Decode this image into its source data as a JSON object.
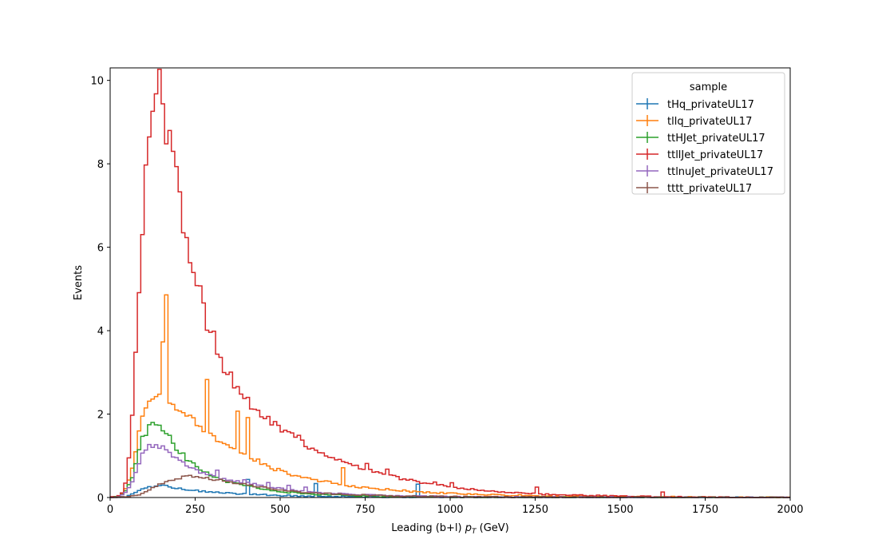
{
  "chart_data": {
    "type": "histogram-step",
    "xlabel_prefix": "Leading (b+l) ",
    "xlabel_math": "p",
    "xlabel_sub": "T",
    "xlabel_suffix": " (GeV)",
    "ylabel": "Events",
    "xlim": [
      0,
      2000
    ],
    "ylim": [
      0,
      10.3
    ],
    "xticks": [
      0,
      250,
      500,
      750,
      1000,
      1250,
      1500,
      1750,
      2000
    ],
    "yticks": [
      0,
      2,
      4,
      6,
      8,
      10
    ],
    "bin_width": 10,
    "legend": {
      "title": "sample",
      "placement": "upper right"
    },
    "series": [
      {
        "name": "tHq_privateUL17",
        "color": "#1f77b4",
        "knots": [
          [
            0,
            0
          ],
          [
            40,
            0.01
          ],
          [
            60,
            0.06
          ],
          [
            80,
            0.14
          ],
          [
            100,
            0.22
          ],
          [
            120,
            0.25
          ],
          [
            150,
            0.3
          ],
          [
            170,
            0.27
          ],
          [
            200,
            0.22
          ],
          [
            240,
            0.18
          ],
          [
            270,
            0.15
          ],
          [
            300,
            0.13
          ],
          [
            350,
            0.1
          ],
          [
            400,
            0.08
          ],
          [
            500,
            0.05
          ],
          [
            600,
            0.03
          ],
          [
            750,
            0.015
          ],
          [
            1000,
            0.005
          ],
          [
            1300,
            0.002
          ],
          [
            2000,
            0
          ]
        ],
        "spikes": [
          [
            40,
            0.35
          ],
          [
            60,
            0.32
          ],
          [
            90,
            0.3
          ]
        ]
      },
      {
        "name": "tllq_privateUL17",
        "color": "#ff7f0e",
        "knots": [
          [
            0,
            0
          ],
          [
            30,
            0.02
          ],
          [
            50,
            0.25
          ],
          [
            70,
            0.9
          ],
          [
            80,
            1.3
          ],
          [
            90,
            1.8
          ],
          [
            100,
            2.1
          ],
          [
            120,
            2.48
          ],
          [
            150,
            2.45
          ],
          [
            160,
            2.5
          ],
          [
            180,
            2.3
          ],
          [
            210,
            2.05
          ],
          [
            240,
            1.85
          ],
          [
            270,
            1.6
          ],
          [
            300,
            1.45
          ],
          [
            350,
            1.2
          ],
          [
            400,
            1.0
          ],
          [
            450,
            0.8
          ],
          [
            500,
            0.65
          ],
          [
            550,
            0.52
          ],
          [
            600,
            0.42
          ],
          [
            700,
            0.28
          ],
          [
            800,
            0.2
          ],
          [
            900,
            0.14
          ],
          [
            1000,
            0.1
          ],
          [
            1100,
            0.07
          ],
          [
            1250,
            0.04
          ],
          [
            1500,
            0.02
          ],
          [
            1750,
            0.008
          ],
          [
            2000,
            0
          ]
        ],
        "spikes": [
          [
            15,
            1.35
          ],
          [
            28,
            1.25
          ],
          [
            37,
            1.0
          ],
          [
            16,
            2.5
          ],
          [
            40,
            0.9
          ],
          [
            68,
            0.42
          ]
        ]
      },
      {
        "name": "ttHJet_privateUL17",
        "color": "#2ca02c",
        "knots": [
          [
            0,
            0
          ],
          [
            30,
            0.02
          ],
          [
            50,
            0.2
          ],
          [
            70,
            0.6
          ],
          [
            80,
            1.0
          ],
          [
            90,
            1.3
          ],
          [
            100,
            1.5
          ],
          [
            110,
            1.65
          ],
          [
            130,
            1.78
          ],
          [
            150,
            1.65
          ],
          [
            170,
            1.45
          ],
          [
            200,
            1.15
          ],
          [
            230,
            0.9
          ],
          [
            260,
            0.7
          ],
          [
            300,
            0.52
          ],
          [
            350,
            0.38
          ],
          [
            400,
            0.28
          ],
          [
            450,
            0.2
          ],
          [
            500,
            0.14
          ],
          [
            600,
            0.08
          ],
          [
            700,
            0.045
          ],
          [
            800,
            0.025
          ],
          [
            1000,
            0.01
          ],
          [
            1250,
            0.004
          ],
          [
            2000,
            0
          ]
        ],
        "spikes": []
      },
      {
        "name": "ttllJet_privateUL17",
        "color": "#d62728",
        "knots": [
          [
            0,
            0
          ],
          [
            30,
            0.05
          ],
          [
            40,
            0.15
          ],
          [
            50,
            0.5
          ],
          [
            60,
            1.35
          ],
          [
            70,
            2.5
          ],
          [
            80,
            4.3
          ],
          [
            90,
            5.7
          ],
          [
            100,
            7.0
          ],
          [
            110,
            8.45
          ],
          [
            120,
            9.15
          ],
          [
            130,
            9.55
          ],
          [
            140,
            9.78
          ],
          [
            150,
            9.6
          ],
          [
            160,
            8.95
          ],
          [
            170,
            8.85
          ],
          [
            180,
            8.2
          ],
          [
            190,
            7.8
          ],
          [
            200,
            7.45
          ],
          [
            210,
            6.75
          ],
          [
            220,
            6.35
          ],
          [
            230,
            5.95
          ],
          [
            240,
            5.48
          ],
          [
            250,
            5.2
          ],
          [
            260,
            5.05
          ],
          [
            270,
            4.55
          ],
          [
            280,
            4.3
          ],
          [
            290,
            4.05
          ],
          [
            300,
            3.9
          ],
          [
            310,
            3.65
          ],
          [
            320,
            3.4
          ],
          [
            330,
            3.2
          ],
          [
            340,
            3.1
          ],
          [
            350,
            3.05
          ],
          [
            360,
            2.85
          ],
          [
            370,
            2.7
          ],
          [
            380,
            2.6
          ],
          [
            390,
            2.55
          ],
          [
            400,
            2.35
          ],
          [
            420,
            2.2
          ],
          [
            440,
            2.05
          ],
          [
            460,
            1.9
          ],
          [
            480,
            1.8
          ],
          [
            500,
            1.68
          ],
          [
            520,
            1.55
          ],
          [
            540,
            1.45
          ],
          [
            560,
            1.35
          ],
          [
            580,
            1.25
          ],
          [
            600,
            1.15
          ],
          [
            650,
            0.95
          ],
          [
            700,
            0.8
          ],
          [
            750,
            0.7
          ],
          [
            800,
            0.58
          ],
          [
            850,
            0.48
          ],
          [
            900,
            0.38
          ],
          [
            950,
            0.32
          ],
          [
            1000,
            0.26
          ],
          [
            1050,
            0.21
          ],
          [
            1100,
            0.17
          ],
          [
            1150,
            0.14
          ],
          [
            1200,
            0.11
          ],
          [
            1250,
            0.09
          ],
          [
            1300,
            0.07
          ],
          [
            1400,
            0.05
          ],
          [
            1500,
            0.03
          ],
          [
            1600,
            0.02
          ],
          [
            1700,
            0.012
          ],
          [
            1800,
            0.006
          ],
          [
            2000,
            0
          ]
        ],
        "spikes": [
          [
            26,
            0.2
          ],
          [
            37,
            0.05
          ],
          [
            38,
            0.05
          ],
          [
            55,
            0.08
          ],
          [
            56,
            0.12
          ],
          [
            75,
            0.12
          ],
          [
            81,
            0.12
          ],
          [
            95,
            0.05
          ],
          [
            100,
            0.1
          ],
          [
            125,
            0.15
          ],
          [
            162,
            0.1
          ]
        ]
      },
      {
        "name": "ttlnuJet_privateUL17",
        "color": "#9467bd",
        "knots": [
          [
            0,
            0
          ],
          [
            30,
            0.02
          ],
          [
            50,
            0.15
          ],
          [
            70,
            0.45
          ],
          [
            80,
            0.7
          ],
          [
            90,
            0.95
          ],
          [
            100,
            1.1
          ],
          [
            120,
            1.25
          ],
          [
            140,
            1.25
          ],
          [
            160,
            1.15
          ],
          [
            180,
            1.05
          ],
          [
            200,
            0.92
          ],
          [
            230,
            0.78
          ],
          [
            260,
            0.64
          ],
          [
            300,
            0.52
          ],
          [
            350,
            0.42
          ],
          [
            400,
            0.35
          ],
          [
            450,
            0.28
          ],
          [
            500,
            0.22
          ],
          [
            550,
            0.17
          ],
          [
            600,
            0.13
          ],
          [
            700,
            0.08
          ],
          [
            800,
            0.05
          ],
          [
            1000,
            0.02
          ],
          [
            1250,
            0.008
          ],
          [
            1600,
            0.003
          ],
          [
            2000,
            0
          ]
        ],
        "spikes": [
          [
            31,
            0.15
          ],
          [
            39,
            0.1
          ],
          [
            46,
            0.1
          ],
          [
            52,
            0.1
          ],
          [
            57,
            0.08
          ]
        ]
      },
      {
        "name": "tttt_privateUL17",
        "color": "#8c564b",
        "knots": [
          [
            0,
            0
          ],
          [
            50,
            0.01
          ],
          [
            80,
            0.05
          ],
          [
            100,
            0.12
          ],
          [
            130,
            0.25
          ],
          [
            160,
            0.38
          ],
          [
            200,
            0.46
          ],
          [
            230,
            0.5
          ],
          [
            260,
            0.5
          ],
          [
            300,
            0.45
          ],
          [
            350,
            0.38
          ],
          [
            400,
            0.3
          ],
          [
            450,
            0.24
          ],
          [
            500,
            0.18
          ],
          [
            550,
            0.14
          ],
          [
            600,
            0.11
          ],
          [
            700,
            0.07
          ],
          [
            800,
            0.045
          ],
          [
            900,
            0.03
          ],
          [
            1000,
            0.02
          ],
          [
            1200,
            0.01
          ],
          [
            1500,
            0.004
          ],
          [
            2000,
            0
          ]
        ],
        "spikes": []
      }
    ]
  }
}
